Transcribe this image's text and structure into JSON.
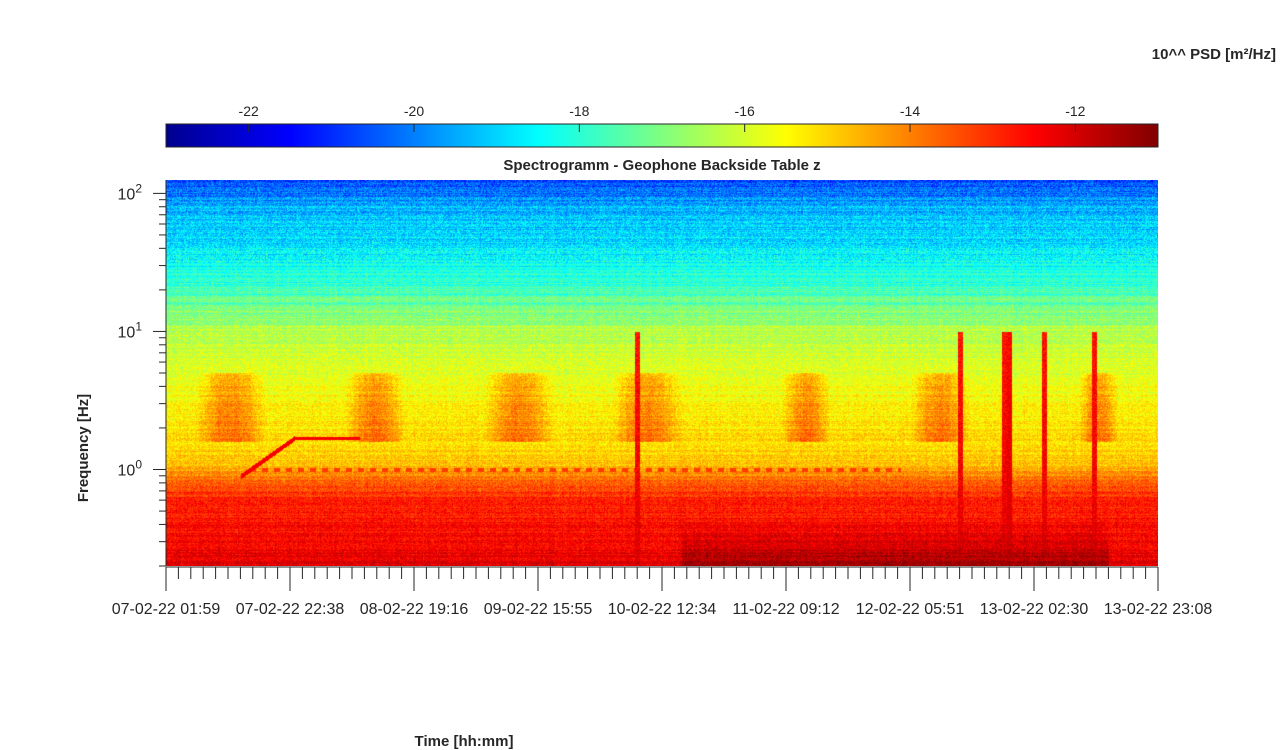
{
  "chart_data": {
    "type": "heatmap",
    "title": "Spectrogramm - Geophone Backside Table z",
    "xlabel": "Time [hh:mm]",
    "ylabel": "Frequency [Hz]",
    "y_scale": "log",
    "ylim": [
      0.2,
      125
    ],
    "xlim": [
      "07-02-22 01:59",
      "13-02-22 23:08"
    ],
    "x_tick_labels": [
      "07-02-22 01:59",
      "07-02-22 22:38",
      "08-02-22 19:16",
      "09-02-22 15:55",
      "10-02-22 12:34",
      "11-02-22 09:12",
      "12-02-22 05:51",
      "13-02-22 02:30",
      "13-02-22 23:08"
    ],
    "y_tick_labels": [
      {
        "base": "10",
        "exp": "0",
        "value": 1
      },
      {
        "base": "10",
        "exp": "1",
        "value": 10
      },
      {
        "base": "10",
        "exp": "2",
        "value": 100
      }
    ],
    "colorbar": {
      "label": "10^^ PSD [m²/Hz]",
      "range": [
        -23,
        -11
      ],
      "ticks": [
        -22,
        -20,
        -18,
        -16,
        -14,
        -12
      ],
      "colormap": "jet",
      "location": "top"
    },
    "features": [
      {
        "kind": "background",
        "description_value": "PSD decreases with frequency: about -12 at 0.2-0.7 Hz, about -15 at 1-10 Hz, about -18 at 20-100 Hz, about -21 at 125 Hz"
      },
      {
        "kind": "ramp-line",
        "from_time": "07-02-22 15:00",
        "to_time": "08-02-22 03:00",
        "from_freq_hz": 0.9,
        "to_freq_hz": 1.7,
        "level": -12.5
      },
      {
        "kind": "tone-line",
        "from_time": "08-02-22 03:00",
        "to_time": "08-02-22 19:00",
        "freq_hz": 1.7,
        "level": -12.5
      },
      {
        "kind": "dashed-line",
        "freq_hz": 1.0,
        "from_time": "07-02-22 15:00",
        "to_time": "12-02-22 09:00",
        "level": -13.5
      },
      {
        "kind": "vertical-burst",
        "time": "10-02-22 07:00",
        "level": -12
      },
      {
        "kind": "vertical-burst",
        "time": "12-02-22 15:00",
        "level": -13
      },
      {
        "kind": "vertical-burst",
        "time": "12-02-22 22:00",
        "level": -13.5
      },
      {
        "kind": "vertical-burst",
        "time": "13-02-22 12:00",
        "level": -14
      }
    ]
  }
}
